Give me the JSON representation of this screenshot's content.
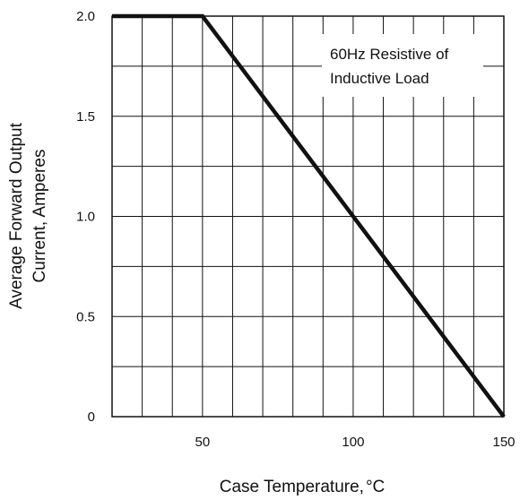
{
  "chart_data": {
    "type": "line",
    "title": "",
    "xlabel": "Case Temperature,",
    "xlabel_unit": "°C",
    "ylabel_lines": [
      "Average Forward Output",
      "Current, Amperes"
    ],
    "xlim": [
      20,
      150
    ],
    "ylim": [
      0,
      2.0
    ],
    "x_ticks": [
      {
        "value": 50,
        "label": "50"
      },
      {
        "value": 100,
        "label": "100"
      },
      {
        "value": 150,
        "label": "150"
      }
    ],
    "y_ticks": [
      {
        "value": 2.0,
        "label": "2.0"
      },
      {
        "value": 1.5,
        "label": "1.5"
      },
      {
        "value": 1.0,
        "label": "1.0"
      },
      {
        "value": 0.5,
        "label": "0.5"
      },
      {
        "value": 0,
        "label": "0"
      }
    ],
    "x_gridlines": [
      20,
      30,
      40,
      50,
      60,
      70,
      80,
      90,
      100,
      110,
      120,
      130,
      140,
      150
    ],
    "y_gridlines": [
      0,
      0.25,
      0.5,
      0.75,
      1.0,
      1.25,
      1.5,
      1.75,
      2.0
    ],
    "grid": true,
    "series": [
      {
        "x": [
          20,
          50,
          150
        ],
        "y": [
          2.0,
          2.0,
          0
        ],
        "color": "#111111"
      }
    ],
    "annotation_lines": [
      "60Hz Resistive of",
      "Inductive Load"
    ]
  }
}
